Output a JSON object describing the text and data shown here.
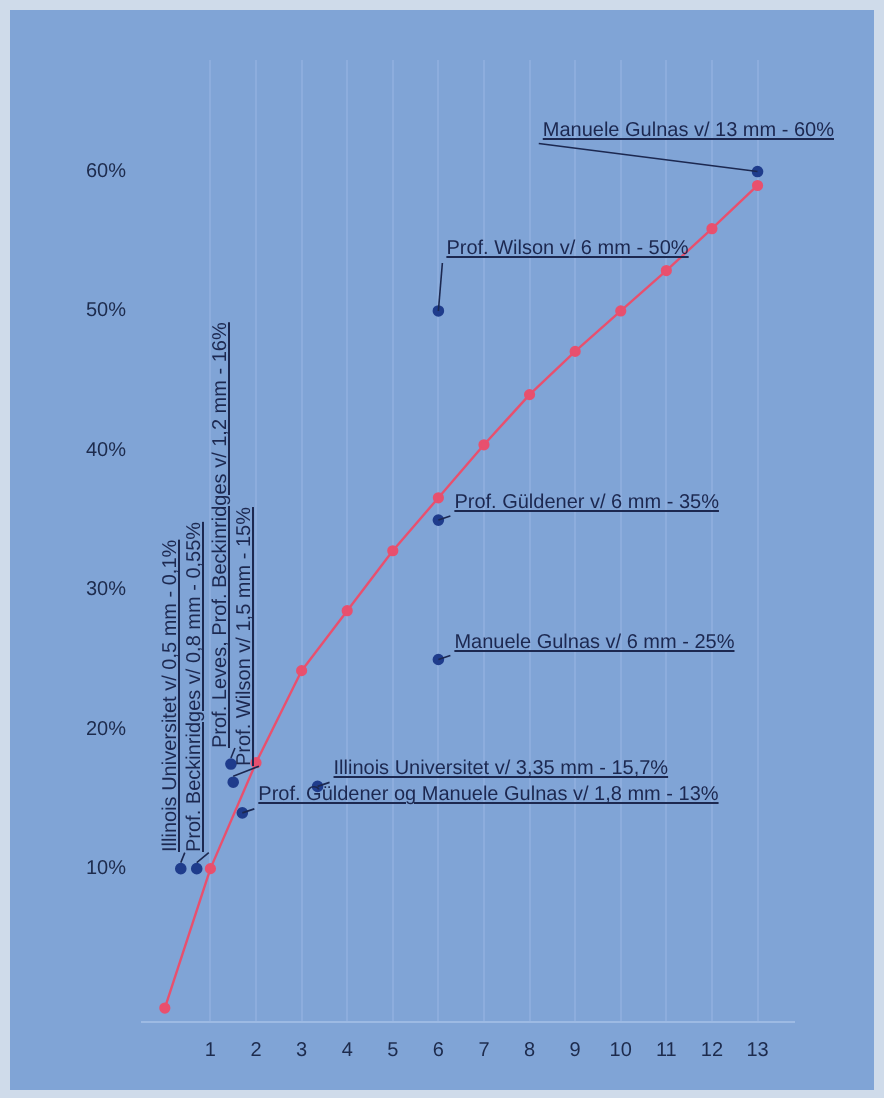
{
  "chart_data": {
    "type": "line",
    "x": [
      0,
      1,
      2,
      3,
      4,
      5,
      6,
      7,
      8,
      9,
      10,
      11,
      12,
      13
    ],
    "series": [
      {
        "color": "#e8506e",
        "values": [
          0,
          10,
          17.6,
          24.2,
          28.5,
          32.8,
          36.6,
          40.4,
          44,
          47.1,
          50,
          52.9,
          55.9,
          59
        ]
      },
      {
        "type": "scatter",
        "color": "#1f3c8c",
        "x": [
          13,
          6,
          6,
          6,
          3.35,
          1.7,
          0.35,
          0.7,
          1.45,
          1.5
        ],
        "values": [
          60,
          50,
          35,
          25,
          15.9,
          14,
          10,
          10,
          17.5,
          16.2
        ]
      }
    ],
    "xlim": [
      -0.5,
      13.8
    ],
    "ylim": [
      -1,
      68
    ],
    "xticks": [
      1,
      2,
      3,
      4,
      5,
      6,
      7,
      8,
      9,
      10,
      11,
      12,
      13
    ],
    "yticks": [
      {
        "value": 10,
        "label": "10%"
      },
      {
        "value": 20,
        "label": "20%"
      },
      {
        "value": 30,
        "label": "30%"
      },
      {
        "value": 40,
        "label": "40%"
      },
      {
        "value": 50,
        "label": "50%"
      },
      {
        "value": 60,
        "label": "60%"
      }
    ],
    "grid": "x",
    "marker": "circle",
    "line_style": "solid",
    "legend": false,
    "annotations": [
      {
        "text": "Manuele Gulnas v/ 13 mm - 60%",
        "x": 13,
        "y": 60
      },
      {
        "text": "Prof. Wilson v/ 6 mm - 50%",
        "x": 6,
        "y": 50
      },
      {
        "text": "Prof. Güldener v/ 6 mm - 35%",
        "x": 6,
        "y": 35
      },
      {
        "text": "Manuele Gulnas v/ 6 mm - 25%",
        "x": 6,
        "y": 25
      },
      {
        "text": "Illinois Universitet v/ 3,35 mm - 15,7%",
        "x": 3.35,
        "y": 15.9
      },
      {
        "text": "Prof. Güldener og Manuele Gulnas v/ 1,8 mm - 13%",
        "x": 1.7,
        "y": 14
      },
      {
        "text": "Illinois Universitet v/ 0,5 mm - 0,1%",
        "x": 0.35,
        "y": 10
      },
      {
        "text": "Prof. Beckinridges v/ 0,8 mm - 0,55%",
        "x": 0.7,
        "y": 10
      },
      {
        "text": "Prof. Leves, Prof. Beckinridges v/ 1,2 mm - 16%",
        "x": 1.45,
        "y": 17.5
      },
      {
        "text": "Prof. Wilson v/ 1,5 mm - 15%",
        "x": 1.5,
        "y": 16.2
      }
    ]
  }
}
